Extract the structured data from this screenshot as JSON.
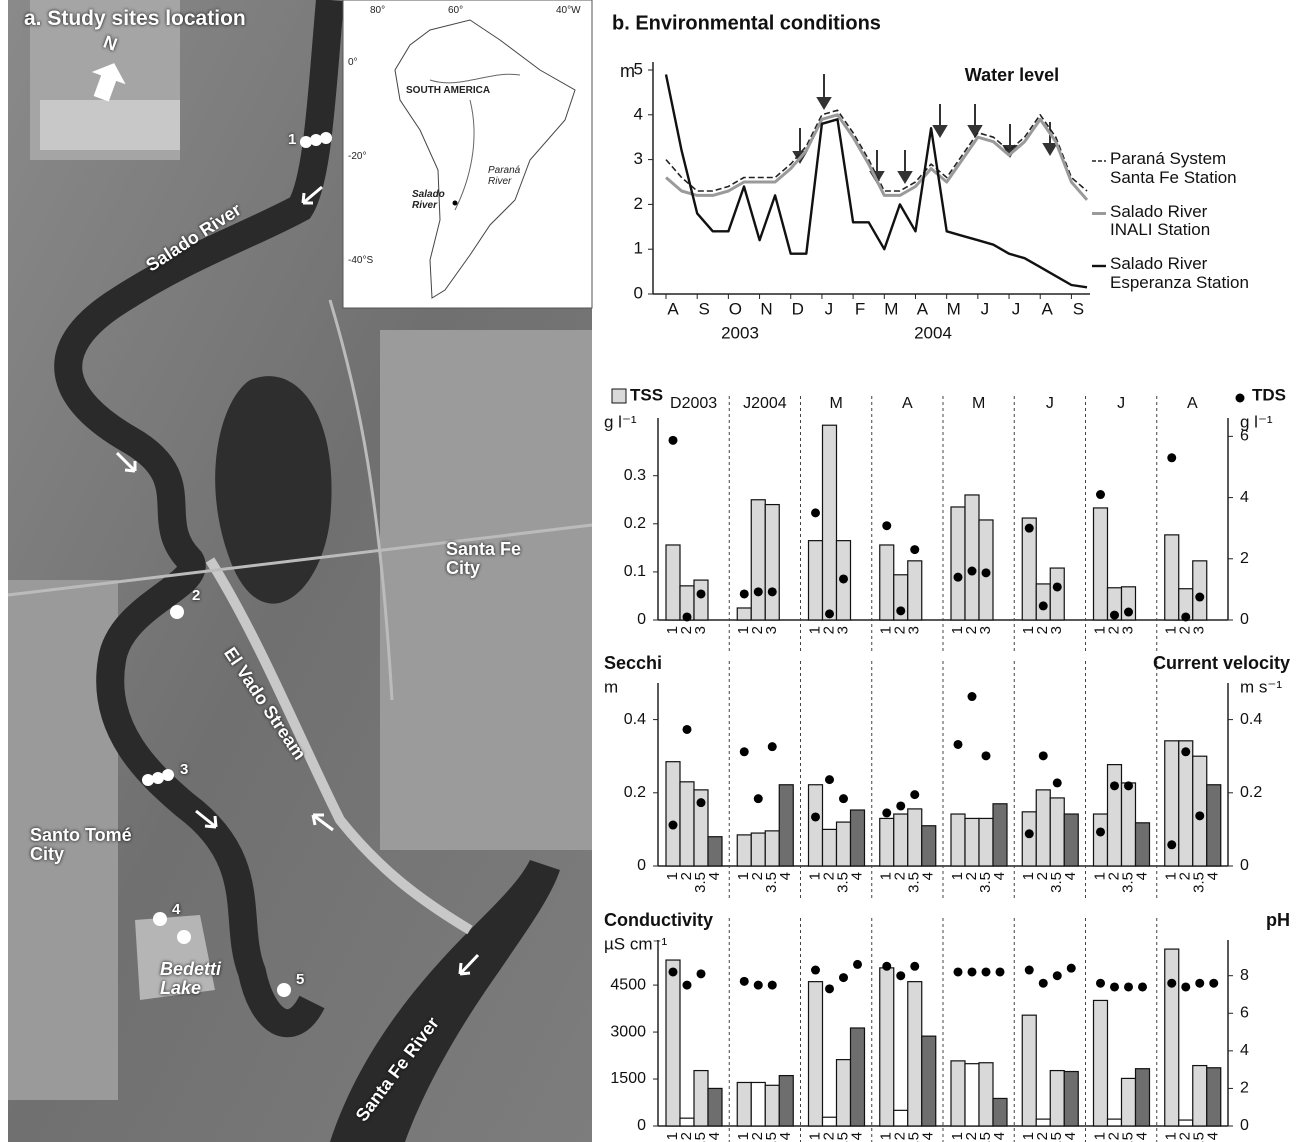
{
  "map": {
    "title": "a. Study sites location",
    "north": "N",
    "rivers": [
      "Salado River",
      "El Vado Stream",
      "Santa Fe River"
    ],
    "cities": [
      "Santa Fe\nCity",
      "Santo Tomé\nCity"
    ],
    "lake": "Bedetti\nLake",
    "sites": [
      "1",
      "2",
      "3",
      "4",
      "5"
    ],
    "inset": {
      "lon_ticks": [
        "80°",
        "60°",
        "40°W"
      ],
      "lat_ticks": [
        "0°",
        "-20°",
        "-40°S"
      ],
      "continent": "SOUTH AMERICA",
      "parana": "Paraná\nRiver",
      "salado": "Salado\nRiver"
    }
  },
  "panel_b_title": "b. Environmental conditions",
  "chart_data": [
    {
      "type": "line",
      "title": "Water level",
      "y_label": "m",
      "categories": [
        "A",
        null,
        "S",
        null,
        "O",
        null,
        "N",
        null,
        "D",
        null,
        "J",
        null,
        "F",
        null,
        "M",
        null,
        "A",
        null,
        "M",
        null,
        "J",
        null,
        "J",
        null,
        "A",
        null,
        "S",
        null
      ],
      "years": [
        "2003",
        "2004"
      ],
      "ylim": [
        0,
        5
      ],
      "yticks": [
        0,
        1,
        2,
        3,
        4,
        5
      ],
      "series": [
        {
          "name": "Paraná System\nSanta Fe Station",
          "color": "#222222",
          "dash": true,
          "values": [
            3.0,
            2.6,
            2.3,
            2.3,
            2.4,
            2.6,
            2.6,
            2.6,
            2.9,
            3.3,
            4.0,
            4.1,
            3.6,
            3.0,
            2.3,
            2.3,
            2.5,
            2.9,
            2.6,
            3.1,
            3.6,
            3.5,
            3.2,
            3.5,
            4.0,
            3.5,
            2.6,
            2.3
          ]
        },
        {
          "name": "Salado River\nINALI Station",
          "color": "#9a9a9a",
          "dash": false,
          "values": [
            2.6,
            2.3,
            2.2,
            2.2,
            2.3,
            2.5,
            2.5,
            2.5,
            2.8,
            3.2,
            3.9,
            4.0,
            3.5,
            2.9,
            2.2,
            2.2,
            2.4,
            2.8,
            2.5,
            3.0,
            3.5,
            3.4,
            3.1,
            3.4,
            3.9,
            3.4,
            2.5,
            2.1
          ]
        },
        {
          "name": "Salado River\nEsperanza Station",
          "color": "#111111",
          "dash": false,
          "values": [
            4.9,
            3.2,
            1.8,
            1.4,
            1.4,
            2.4,
            1.2,
            2.2,
            0.9,
            0.9,
            3.8,
            3.9,
            1.6,
            1.6,
            1.0,
            2.0,
            1.4,
            3.7,
            1.4,
            1.3,
            1.2,
            1.1,
            0.9,
            0.8,
            0.6,
            0.4,
            0.2,
            0.15
          ]
        }
      ]
    },
    {
      "type": "bar",
      "legend": true,
      "groups": [
        "D2003",
        "J2004",
        "M",
        "A",
        "M",
        "J",
        "J",
        "A"
      ],
      "categories": [
        "1",
        "2",
        "3"
      ],
      "site_colors": [
        "#d9d9d9",
        "#d9d9d9",
        "#d9d9d9"
      ],
      "y_label": "g l⁻¹",
      "y2_label": "g l⁻¹",
      "ylim": [
        0,
        0.42
      ],
      "yticks": [
        0,
        0.1,
        0.2,
        0.3
      ],
      "y2lim": [
        0,
        6.6
      ],
      "y2ticks": [
        0,
        2,
        4,
        6
      ],
      "series": [
        {
          "name": "TSS",
          "kind": "bar",
          "color": "#d9d9d9",
          "values": [
            [
              0.156,
              0.071,
              0.083
            ],
            [
              0.025,
              0.25,
              0.24
            ],
            [
              0.165,
              0.405,
              0.165
            ],
            [
              0.156,
              0.094,
              0.123
            ],
            [
              0.235,
              0.26,
              0.208
            ],
            [
              0.212,
              0.075,
              0.108
            ],
            [
              0.233,
              0.067,
              0.069
            ],
            [
              0.177,
              0.065,
              0.123
            ]
          ]
        },
        {
          "name": "TDS",
          "kind": "dot",
          "axis": "y2",
          "color": "#000000",
          "values": [
            [
              5.87,
              0.1,
              0.85
            ],
            [
              0.85,
              0.92,
              0.92
            ],
            [
              3.5,
              0.2,
              1.34
            ],
            [
              3.08,
              0.3,
              2.3
            ],
            [
              1.4,
              1.6,
              1.54
            ],
            [
              3.0,
              0.46,
              1.08
            ],
            [
              4.1,
              0.16,
              0.26
            ],
            [
              5.3,
              0.1,
              0.75
            ]
          ]
        }
      ]
    },
    {
      "type": "bar",
      "legend": false,
      "categories": [
        "1",
        "2",
        "3.5",
        "4"
      ],
      "site_colors": [
        "#d9d9d9",
        "#d9d9d9",
        "#d9d9d9",
        "#6e6e6e"
      ],
      "y_label": "m",
      "y2_label": "m s⁻¹",
      "ylim": [
        0,
        0.5
      ],
      "yticks": [
        0,
        0.2,
        0.4
      ],
      "y2lim": [
        0,
        0.5
      ],
      "y2ticks": [
        0,
        0.2,
        0.4
      ],
      "series": [
        {
          "name": "Secchi",
          "kind": "bar",
          "color": "#d9d9d9",
          "values": [
            [
              0.285,
              0.23,
              0.208,
              0.08
            ],
            [
              0.085,
              0.09,
              0.096,
              0.222
            ],
            [
              0.222,
              0.1,
              0.12,
              0.153
            ],
            [
              0.13,
              0.142,
              0.156,
              0.11
            ],
            [
              0.142,
              0.13,
              0.13,
              0.17
            ],
            [
              0.148,
              0.208,
              0.186,
              0.142
            ],
            [
              0.142,
              0.277,
              0.227,
              0.118
            ],
            [
              0.342,
              0.342,
              0.3,
              0.222
            ]
          ]
        },
        {
          "name": "Current velocity",
          "kind": "dot",
          "axis": "y2",
          "color": "#000000",
          "values": [
            [
              0.112,
              0.373,
              0.173,
              null
            ],
            [
              0.312,
              0.184,
              0.326,
              null
            ],
            [
              0.134,
              0.236,
              0.184,
              null
            ],
            [
              0.145,
              0.164,
              0.195,
              null
            ],
            [
              0.332,
              0.463,
              0.301,
              null
            ],
            [
              0.088,
              0.301,
              0.227,
              null
            ],
            [
              0.093,
              0.219,
              0.219,
              null
            ],
            [
              0.058,
              0.312,
              0.137,
              null
            ]
          ]
        }
      ]
    },
    {
      "type": "bar",
      "legend": false,
      "categories": [
        "1",
        "2",
        "3.5",
        "4"
      ],
      "site_colors": [
        "#d9d9d9",
        "#ffffff",
        "#d9d9d9",
        "#6e6e6e"
      ],
      "y_label": "µS cm⁻¹",
      "ylim": [
        0,
        5940
      ],
      "yticks": [
        0,
        1500,
        3000,
        4500
      ],
      "y2lim": [
        0,
        9.9
      ],
      "y2ticks": [
        0,
        2,
        4,
        6,
        8
      ],
      "series": [
        {
          "name": "Conductivity",
          "kind": "bar",
          "color": "#d9d9d9",
          "values": [
            [
              5300,
              250,
              1770,
              1200
            ],
            [
              1390,
              1390,
              1300,
              1610
            ],
            [
              4610,
              280,
              2120,
              3130
            ],
            [
              5050,
              500,
              4610,
              2870
            ],
            [
              2080,
              1990,
              2020,
              880
            ],
            [
              3540,
              220,
              1770,
              1740
            ],
            [
              4010,
              220,
              1520,
              1830
            ],
            [
              5650,
              190,
              1930,
              1860
            ]
          ]
        },
        {
          "name": "pH",
          "kind": "dot",
          "axis": "y2",
          "color": "#000000",
          "values": [
            [
              8.2,
              7.5,
              8.1,
              null
            ],
            [
              7.7,
              7.5,
              7.5,
              null
            ],
            [
              8.3,
              7.3,
              7.9,
              8.6
            ],
            [
              8.5,
              8.0,
              8.5,
              null
            ],
            [
              8.2,
              8.2,
              8.2,
              8.2
            ],
            [
              8.3,
              7.6,
              8.0,
              8.4
            ],
            [
              7.6,
              7.4,
              7.4,
              7.4
            ],
            [
              7.6,
              7.4,
              7.6,
              7.6
            ]
          ]
        }
      ]
    }
  ]
}
